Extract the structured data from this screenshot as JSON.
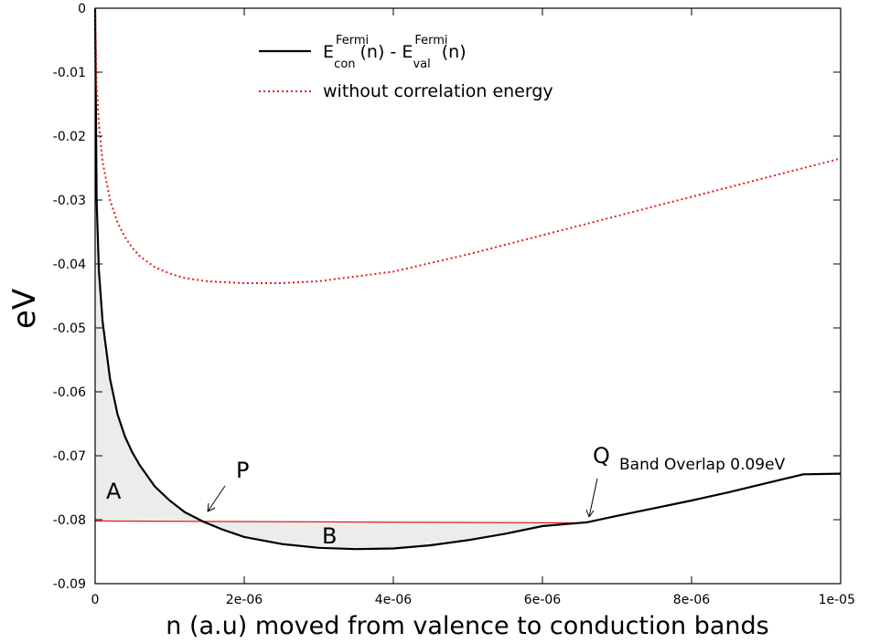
{
  "chart_data": {
    "type": "line",
    "xlabel": "n (a.u) moved from valence to conduction bands",
    "ylabel": "eV",
    "xlim": [
      0,
      1e-05
    ],
    "ylim": [
      -0.09,
      0
    ],
    "x_ticks": [
      "0",
      "2e-06",
      "4e-06",
      "6e-06",
      "8e-06",
      "1e-05"
    ],
    "y_ticks": [
      "0",
      "-0.01",
      "-0.02",
      "-0.03",
      "-0.04",
      "-0.05",
      "-0.06",
      "-0.07",
      "-0.08",
      "-0.09"
    ],
    "grid": false,
    "legend_position": "top-center",
    "series": [
      {
        "name": "E_con^Fermi(n) - E_val^Fermi(n)",
        "legend_parts": {
          "E1": "E",
          "sup1": "Fermi",
          "sub1": "con",
          "mid": "(n) - E",
          "sup2": "Fermi",
          "sub2": "val",
          "end": "(n)"
        },
        "color": "#000000",
        "style": "solid",
        "x": [
          0,
          2e-08,
          5e-08,
          1e-07,
          2e-07,
          3e-07,
          4e-07,
          5e-07,
          6e-07,
          8e-07,
          1e-06,
          1.2e-06,
          1.45e-06,
          1.7e-06,
          2e-06,
          2.5e-06,
          3e-06,
          3.5e-06,
          4e-06,
          4.5e-06,
          5e-06,
          5.5e-06,
          6e-06,
          6.6e-06,
          7e-06,
          7.5e-06,
          8e-06,
          8.5e-06,
          9e-06,
          9.5e-06,
          1e-05
        ],
        "y": [
          0,
          -0.03,
          -0.041,
          -0.049,
          -0.058,
          -0.0635,
          -0.067,
          -0.0695,
          -0.0715,
          -0.0748,
          -0.077,
          -0.0788,
          -0.0803,
          -0.0815,
          -0.0827,
          -0.0838,
          -0.0844,
          -0.0846,
          -0.0845,
          -0.084,
          -0.0832,
          -0.0822,
          -0.081,
          -0.0804,
          -0.0794,
          -0.0782,
          -0.077,
          -0.0757,
          -0.0743,
          -0.0729,
          -0.0728
        ]
      },
      {
        "name": "without correlation energy",
        "color": "#e41a1c",
        "style": "dotted",
        "x": [
          0,
          2e-08,
          5e-08,
          1e-07,
          2e-07,
          3e-07,
          4e-07,
          5e-07,
          6e-07,
          8e-07,
          1e-06,
          1.2e-06,
          1.5e-06,
          2e-06,
          2.5e-06,
          3e-06,
          4e-06,
          5e-06,
          6e-06,
          7e-06,
          8e-06,
          9e-06,
          1e-05
        ],
        "y": [
          0,
          -0.012,
          -0.018,
          -0.024,
          -0.03,
          -0.0335,
          -0.0358,
          -0.0375,
          -0.0388,
          -0.0405,
          -0.0415,
          -0.0422,
          -0.0427,
          -0.043,
          -0.043,
          -0.0427,
          -0.0412,
          -0.0385,
          -0.0355,
          -0.0325,
          -0.0295,
          -0.0265,
          -0.0235
        ]
      }
    ],
    "reference_line": {
      "color": "#e41a1c",
      "x": [
        0,
        6.6e-06
      ],
      "y": [
        -0.0802,
        -0.0805
      ]
    },
    "shaded_regions": [
      {
        "label": "A",
        "x_range": [
          0,
          1.45e-06
        ],
        "color": "#ececec"
      },
      {
        "label": "B",
        "x_range": [
          1.45e-06,
          6.6e-06
        ],
        "color": "#ececec"
      }
    ],
    "annotations": {
      "P": {
        "label": "P",
        "target": [
          1.45e-06,
          -0.0804
        ]
      },
      "Q": {
        "label": "Q",
        "target": [
          6.6e-06,
          -0.0805
        ],
        "note": "Band Overlap 0.09eV"
      },
      "A": {
        "label": "A"
      },
      "B": {
        "label": "B"
      }
    }
  }
}
